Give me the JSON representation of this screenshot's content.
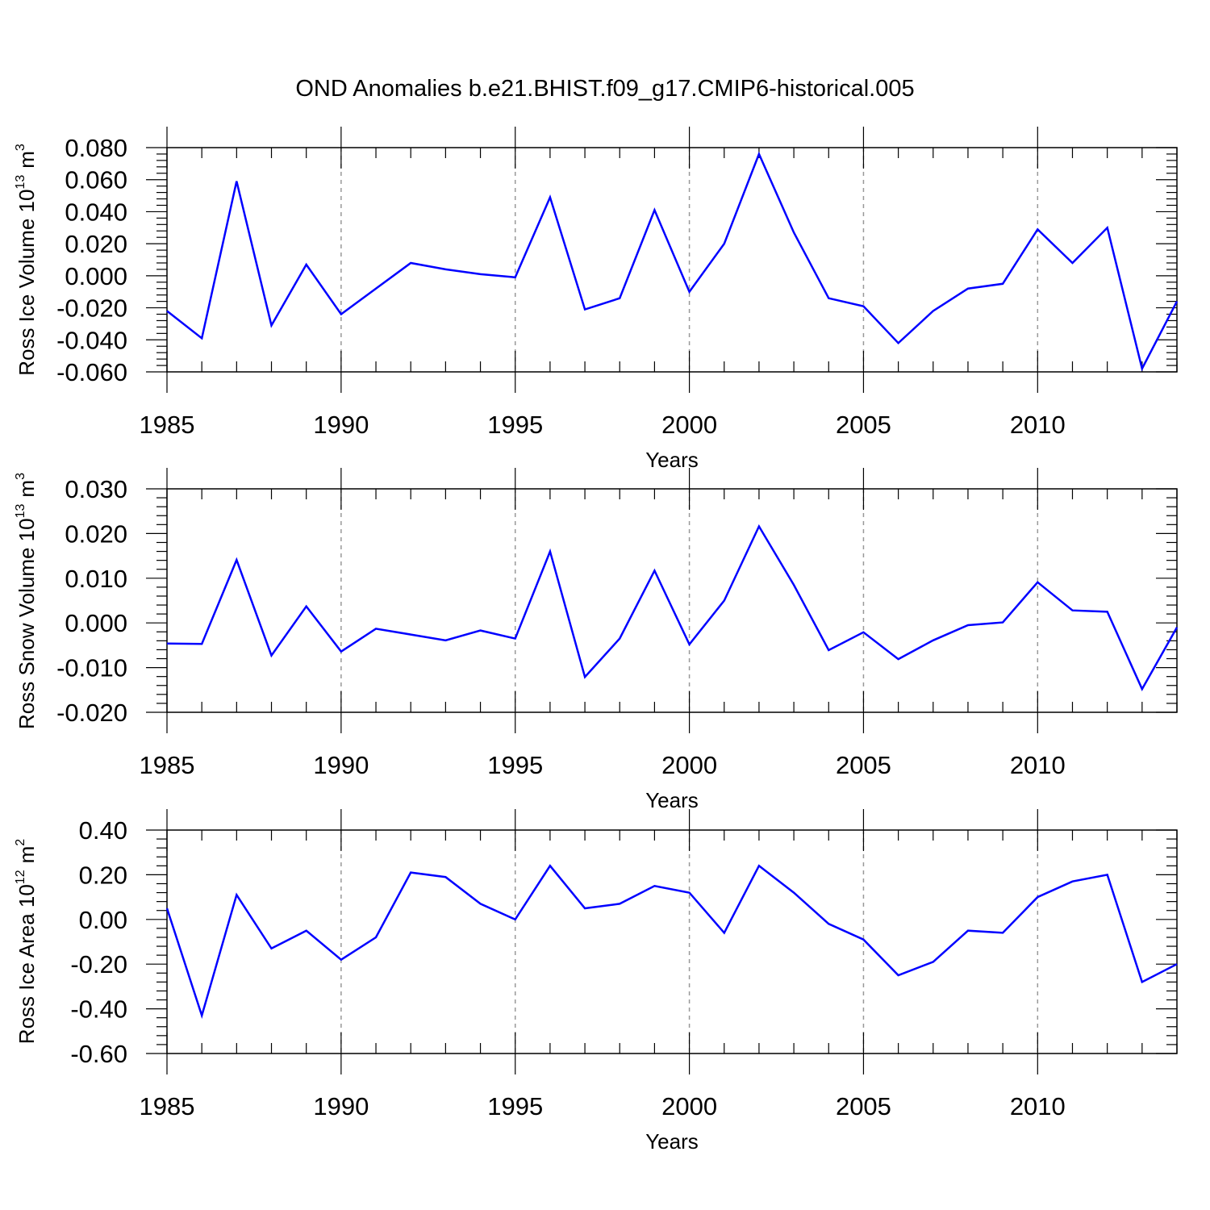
{
  "title": "OND Anomalies b.e21.BHIST.f09_g17.CMIP6-historical.005",
  "line_color": "#0000ff",
  "grid_color": "#999999",
  "chart_data": [
    {
      "type": "line",
      "ylabel": "Ross Ice Volume 10",
      "ylabel_exp": "13",
      "ylabel_unit": "m",
      "ylabel_unit_exp": "3",
      "xlabel": "Years",
      "xlim": [
        1985,
        2014
      ],
      "ylim": [
        -0.06,
        0.08
      ],
      "yticks": [
        -0.06,
        -0.04,
        -0.02,
        0.0,
        0.02,
        0.04,
        0.06,
        0.08
      ],
      "ytick_labels": [
        "-0.060",
        "-0.040",
        "-0.020",
        "0.000",
        "0.020",
        "0.040",
        "0.060",
        "0.080"
      ],
      "xticks": [
        1985,
        1990,
        1995,
        2000,
        2005,
        2010
      ],
      "xtick_labels": [
        "1985",
        "1990",
        "1995",
        "2000",
        "2005",
        "2010"
      ],
      "grid": "vertical-dashed",
      "x": [
        1985,
        1986,
        1987,
        1988,
        1989,
        1990,
        1991,
        1992,
        1993,
        1994,
        1995,
        1996,
        1997,
        1998,
        1999,
        2000,
        2001,
        2002,
        2003,
        2004,
        2005,
        2006,
        2007,
        2008,
        2009,
        2010,
        2011,
        2012,
        2013,
        2014
      ],
      "y": [
        -0.022,
        -0.039,
        0.059,
        -0.031,
        0.007,
        -0.024,
        -0.008,
        0.008,
        0.004,
        0.001,
        -0.001,
        0.049,
        -0.021,
        -0.014,
        0.041,
        -0.01,
        0.02,
        0.076,
        0.027,
        -0.014,
        -0.019,
        -0.042,
        -0.022,
        -0.008,
        -0.005,
        0.029,
        0.008,
        0.03,
        -0.058,
        -0.016
      ]
    },
    {
      "type": "line",
      "ylabel": "Ross Snow Volume 10",
      "ylabel_exp": "13",
      "ylabel_unit": "m",
      "ylabel_unit_exp": "3",
      "xlabel": "Years",
      "xlim": [
        1985,
        2014
      ],
      "ylim": [
        -0.02,
        0.03
      ],
      "yticks": [
        -0.02,
        -0.01,
        0.0,
        0.01,
        0.02,
        0.03
      ],
      "ytick_labels": [
        "-0.020",
        "-0.010",
        "0.000",
        "0.010",
        "0.020",
        "0.030"
      ],
      "xticks": [
        1985,
        1990,
        1995,
        2000,
        2005,
        2010
      ],
      "xtick_labels": [
        "1985",
        "1990",
        "1995",
        "2000",
        "2005",
        "2010"
      ],
      "grid": "vertical-dashed",
      "x": [
        1985,
        1986,
        1987,
        1988,
        1989,
        1990,
        1991,
        1992,
        1993,
        1994,
        1995,
        1996,
        1997,
        1998,
        1999,
        2000,
        2001,
        2002,
        2003,
        2004,
        2005,
        2006,
        2007,
        2008,
        2009,
        2010,
        2011,
        2012,
        2013,
        2014
      ],
      "y": [
        -0.0046,
        -0.0047,
        0.0141,
        -0.0073,
        0.0037,
        -0.0064,
        -0.0013,
        -0.0026,
        -0.0039,
        -0.0017,
        -0.0035,
        0.016,
        -0.0121,
        -0.0035,
        0.0117,
        -0.0048,
        0.005,
        0.0216,
        0.0085,
        -0.0061,
        -0.0021,
        -0.0081,
        -0.0039,
        -0.0005,
        0.0001,
        0.0091,
        0.0028,
        0.0025,
        -0.0148,
        -0.001
      ]
    },
    {
      "type": "line",
      "ylabel": "Ross Ice Area 10",
      "ylabel_exp": "12",
      "ylabel_unit": "m",
      "ylabel_unit_exp": "2",
      "xlabel": "Years",
      "xlim": [
        1985,
        2014
      ],
      "ylim": [
        -0.6,
        0.4
      ],
      "yticks": [
        -0.6,
        -0.4,
        -0.2,
        0.0,
        0.2,
        0.4
      ],
      "ytick_labels": [
        "-0.60",
        "-0.40",
        "-0.20",
        "0.00",
        "0.20",
        "0.40"
      ],
      "xticks": [
        1985,
        1990,
        1995,
        2000,
        2005,
        2010
      ],
      "xtick_labels": [
        "1985",
        "1990",
        "1995",
        "2000",
        "2005",
        "2010"
      ],
      "grid": "vertical-dashed",
      "x": [
        1985,
        1986,
        1987,
        1988,
        1989,
        1990,
        1991,
        1992,
        1993,
        1994,
        1995,
        1996,
        1997,
        1998,
        1999,
        2000,
        2001,
        2002,
        2003,
        2004,
        2005,
        2006,
        2007,
        2008,
        2009,
        2010,
        2011,
        2012,
        2013,
        2014
      ],
      "y": [
        0.05,
        -0.43,
        0.11,
        -0.13,
        -0.05,
        -0.18,
        -0.08,
        0.21,
        0.19,
        0.07,
        0.0,
        0.24,
        0.05,
        0.07,
        0.15,
        0.12,
        -0.06,
        0.24,
        0.12,
        -0.02,
        -0.09,
        -0.25,
        -0.19,
        -0.05,
        -0.06,
        0.1,
        0.17,
        0.2,
        -0.28,
        -0.2
      ]
    }
  ]
}
